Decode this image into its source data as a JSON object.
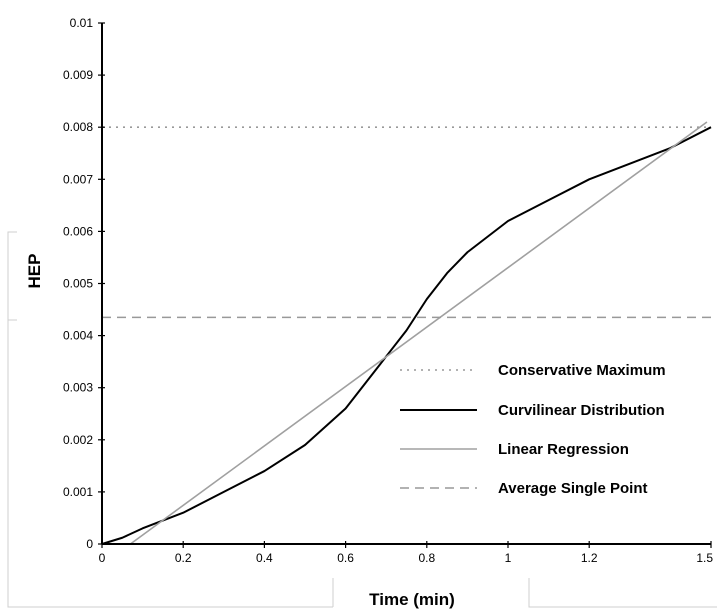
{
  "chart_data": {
    "type": "line",
    "xlabel": "Time (min)",
    "ylabel": "HEP",
    "xlim": [
      0,
      1.5
    ],
    "ylim": [
      0,
      0.01
    ],
    "x_ticks": [
      "0",
      "0.2",
      "0.4",
      "0.6",
      "0.8",
      "1",
      "1.2",
      "1.5"
    ],
    "x_tick_values": [
      0,
      0.2,
      0.4,
      0.6,
      0.8,
      1.0,
      1.2,
      1.5
    ],
    "y_ticks": [
      "0",
      "0.001",
      "0.002",
      "0.003",
      "0.004",
      "0.005",
      "0.006",
      "0.007",
      "0.008",
      "0.009",
      "0.01"
    ],
    "y_tick_values": [
      0,
      0.001,
      0.002,
      0.003,
      0.004,
      0.005,
      0.006,
      0.007,
      0.008,
      0.009,
      0.01
    ],
    "grid": false,
    "legend_position": "bottom-right",
    "series": [
      {
        "name": "Conservative Maximum",
        "style": "dotted",
        "color": "#999999",
        "x": [
          0,
          1.5
        ],
        "y": [
          0.008,
          0.008
        ]
      },
      {
        "name": "Curvilinear Distribution",
        "style": "solid",
        "color": "#000000",
        "x": [
          0,
          0.05,
          0.1,
          0.2,
          0.3,
          0.4,
          0.5,
          0.6,
          0.65,
          0.7,
          0.75,
          0.8,
          0.85,
          0.9,
          0.95,
          1.0,
          1.1,
          1.2,
          1.3,
          1.4,
          1.5
        ],
        "y": [
          0,
          0.00012,
          0.0003,
          0.0006,
          0.001,
          0.0014,
          0.0019,
          0.0026,
          0.0031,
          0.0036,
          0.0041,
          0.0047,
          0.0052,
          0.0056,
          0.0059,
          0.0062,
          0.0066,
          0.007,
          0.0073,
          0.0076,
          0.008
        ]
      },
      {
        "name": "Linear Regression",
        "style": "solid",
        "color": "#a0a0a0",
        "x": [
          0.07,
          1.49
        ],
        "y": [
          0,
          0.0081
        ]
      },
      {
        "name": "Average Single Point",
        "style": "dashed",
        "color": "#999999",
        "x": [
          0,
          1.5
        ],
        "y": [
          0.00435,
          0.00435
        ]
      }
    ]
  }
}
